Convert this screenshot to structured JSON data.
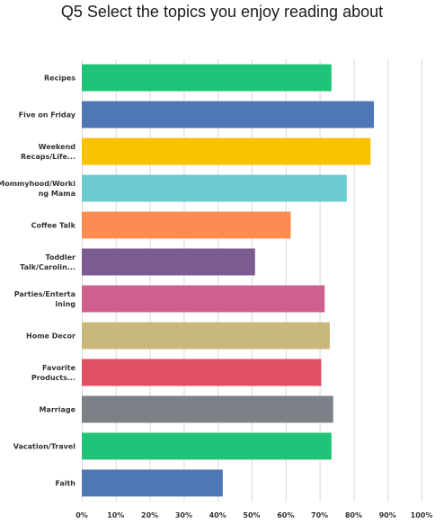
{
  "chart_data": {
    "type": "bar",
    "orientation": "horizontal",
    "title": "Q5 Select the topics you enjoy reading about",
    "categories": [
      [
        "Recipes"
      ],
      [
        "Five on Friday"
      ],
      [
        "Weekend",
        "Recaps/Life..."
      ],
      [
        "Mommyhood/Worki",
        "ng Mama"
      ],
      [
        "Coffee Talk"
      ],
      [
        "Toddler",
        "Talk/Carolin..."
      ],
      [
        "Parties/Enterta",
        "ining"
      ],
      [
        "Home Decor"
      ],
      [
        "Favorite",
        "Products..."
      ],
      [
        "Marriage"
      ],
      [
        "Vacation/Travel"
      ],
      [
        "Faith"
      ]
    ],
    "values": [
      73.5,
      86.0,
      85.0,
      78.0,
      61.5,
      51.0,
      71.5,
      73.0,
      70.5,
      74.0,
      73.5,
      41.5
    ],
    "colors": [
      "#1fc47a",
      "#4f76b5",
      "#f9c200",
      "#6ccbd0",
      "#fe8c52",
      "#7b5c90",
      "#d15f8e",
      "#c9b87c",
      "#e05062",
      "#7b8187",
      "#1fc47a",
      "#4f76b5"
    ],
    "xticks": [
      "0%",
      "10%",
      "20%",
      "30%",
      "40%",
      "50%",
      "60%",
      "70%",
      "80%",
      "90%",
      "100%"
    ],
    "xlim": [
      0,
      100
    ],
    "grid": true,
    "xlabel": "",
    "ylabel": ""
  }
}
